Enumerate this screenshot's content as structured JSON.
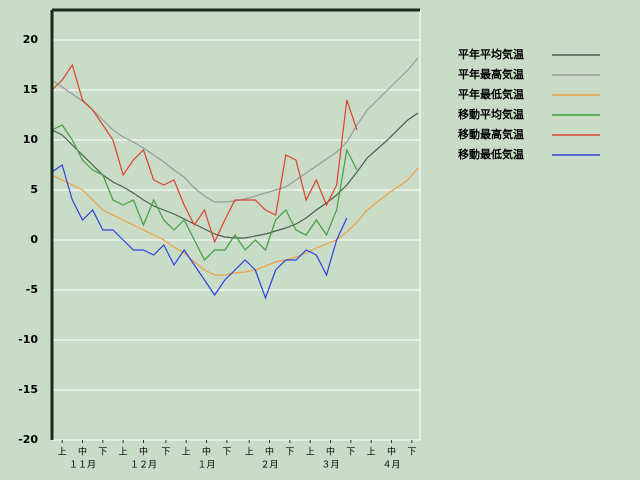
{
  "chart_data": {
    "type": "line",
    "x": [
      0,
      5,
      10,
      15,
      20,
      25,
      30,
      35,
      40,
      45,
      50,
      55,
      60,
      65,
      70,
      75,
      80,
      85,
      90,
      95,
      100,
      105,
      110,
      115,
      120,
      125,
      130,
      135,
      140,
      145,
      150,
      155,
      160,
      165,
      170,
      175,
      180
    ],
    "xlim": [
      0,
      181
    ],
    "xticks": [
      {
        "value": 5,
        "label": "上"
      },
      {
        "value": 15,
        "label": "中"
      },
      {
        "value": 25,
        "label": "下"
      },
      {
        "value": 35,
        "label": "上"
      },
      {
        "value": 45,
        "label": "中"
      },
      {
        "value": 56,
        "label": "下"
      },
      {
        "value": 66,
        "label": "上"
      },
      {
        "value": 76,
        "label": "中"
      },
      {
        "value": 86,
        "label": "下"
      },
      {
        "value": 97,
        "label": "上"
      },
      {
        "value": 107,
        "label": "中"
      },
      {
        "value": 117,
        "label": "下"
      },
      {
        "value": 127,
        "label": "上"
      },
      {
        "value": 137,
        "label": "中"
      },
      {
        "value": 147,
        "label": "下"
      },
      {
        "value": 157,
        "label": "上"
      },
      {
        "value": 167,
        "label": "中"
      },
      {
        "value": 177,
        "label": "下"
      }
    ],
    "month_labels": [
      {
        "value": 15,
        "label": "１１月"
      },
      {
        "value": 45,
        "label": "１２月"
      },
      {
        "value": 76,
        "label": "１月"
      },
      {
        "value": 107,
        "label": "２月"
      },
      {
        "value": 137,
        "label": "３月"
      },
      {
        "value": 167,
        "label": "４月"
      }
    ],
    "ylim": [
      -20,
      23
    ],
    "yticks": [
      -20,
      -15,
      -10,
      -5,
      0,
      5,
      10,
      15,
      20
    ],
    "grid": true,
    "legend": "right",
    "series": [
      {
        "name": "平年平均気温",
        "color": "#4e5e4e",
        "values": [
          11,
          10.5,
          9.5,
          8.5,
          7.5,
          6.5,
          5.8,
          5.3,
          4.7,
          4,
          3.4,
          3,
          2.6,
          2.1,
          1.6,
          1.1,
          0.6,
          0.3,
          0.2,
          0.2,
          0.4,
          0.6,
          0.9,
          1.2,
          1.6,
          2.2,
          3,
          3.7,
          4.5,
          5.5,
          6.8,
          8.2,
          9.1,
          10,
          11,
          12,
          12.7
        ]
      },
      {
        "name": "平年最高気温",
        "color": "#999999",
        "values": [
          16,
          15.3,
          14.6,
          13.9,
          13,
          12,
          11,
          10.3,
          9.8,
          9.2,
          8.5,
          7.8,
          7,
          6.3,
          5.2,
          4.4,
          3.8,
          3.8,
          3.9,
          4.1,
          4.4,
          4.7,
          5,
          5.3,
          6,
          6.7,
          7.4,
          8.1,
          8.8,
          9.8,
          11.5,
          13,
          14,
          15,
          16,
          17,
          18.2
        ]
      },
      {
        "name": "平年最低気温",
        "color": "#f0a040",
        "values": [
          6.5,
          6,
          5.5,
          5,
          4,
          3,
          2.5,
          2,
          1.5,
          1,
          0.5,
          0,
          -0.7,
          -1.3,
          -2.2,
          -3,
          -3.5,
          -3.5,
          -3.3,
          -3.2,
          -3,
          -2.6,
          -2.2,
          -2,
          -1.7,
          -1.3,
          -0.8,
          -0.4,
          0,
          0.8,
          1.8,
          3,
          3.8,
          4.6,
          5.3,
          6,
          7.2
        ]
      },
      {
        "name": "移動平均気温",
        "color": "#40a040",
        "values": [
          11,
          11.5,
          10,
          8,
          7,
          6.5,
          4,
          3.5,
          4,
          1.5,
          4,
          2,
          1,
          2,
          0,
          -2,
          -1,
          -1,
          0.5,
          -1,
          0,
          -1,
          2,
          3,
          1,
          0.5,
          2,
          0.5,
          3,
          9,
          7,
          null,
          null,
          null,
          null,
          null,
          null
        ]
      },
      {
        "name": "移動最高気温",
        "color": "#e04030",
        "values": [
          15,
          16,
          17.5,
          14,
          13,
          11.5,
          10,
          6.5,
          8,
          9,
          6,
          5.5,
          6,
          3.5,
          1.5,
          3,
          -0.2,
          2,
          4,
          4,
          4,
          3,
          2.5,
          8.5,
          8,
          4,
          6,
          3.5,
          5.5,
          14,
          11,
          null,
          null,
          null,
          null,
          null,
          null
        ]
      },
      {
        "name": "移動最低気温",
        "color": "#3040e0",
        "values": [
          6.8,
          7.5,
          4,
          2,
          3,
          1,
          1,
          0,
          -1,
          -1,
          -1.5,
          -0.5,
          -2.5,
          -1,
          -2.5,
          -4,
          -5.5,
          -4,
          -3,
          -2,
          -3,
          -5.8,
          -3,
          -2,
          -2,
          -1,
          -1.5,
          -3.5,
          0,
          2.2,
          null,
          null,
          null,
          null,
          null,
          null,
          null
        ]
      }
    ]
  }
}
